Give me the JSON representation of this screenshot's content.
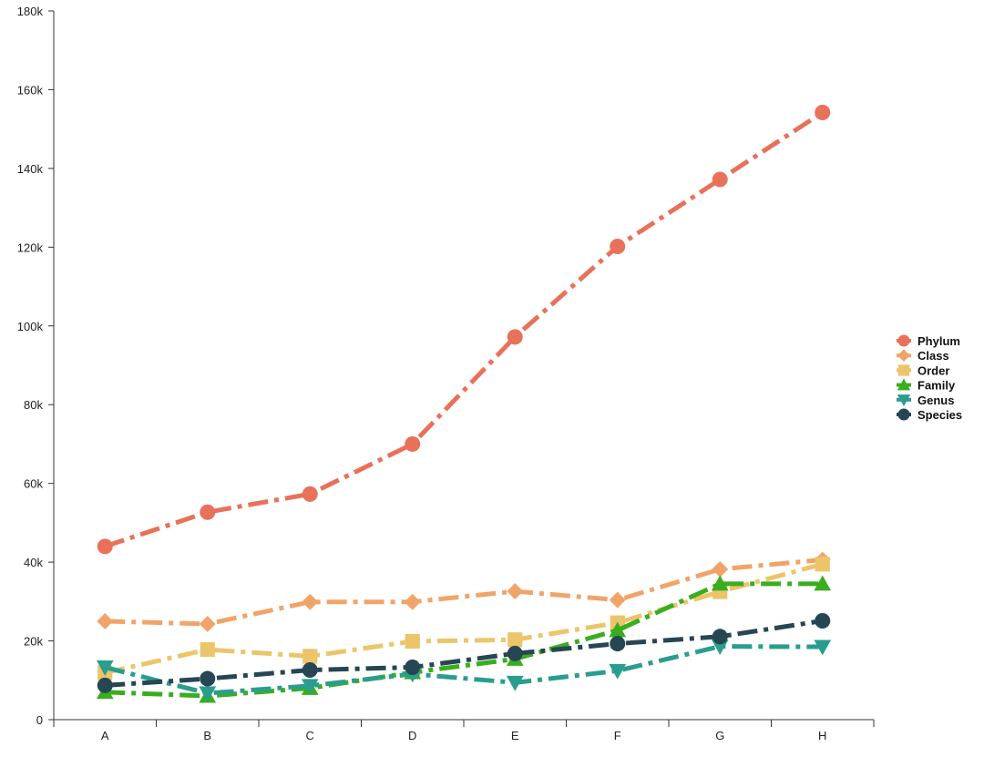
{
  "chart_data": {
    "type": "line",
    "title": "",
    "xlabel": "",
    "ylabel": "",
    "categories": [
      "A",
      "B",
      "C",
      "D",
      "E",
      "F",
      "G",
      "H"
    ],
    "ylim": [
      0,
      180000
    ],
    "yticks": [
      0,
      20000,
      40000,
      60000,
      80000,
      100000,
      120000,
      140000,
      160000,
      180000
    ],
    "ytick_labels": [
      "0",
      "20k",
      "40k",
      "60k",
      "80k",
      "100k",
      "120k",
      "140k",
      "160k",
      "180k"
    ],
    "grid": false,
    "legend_position": "right",
    "series": [
      {
        "name": "Phylum",
        "color": "#e8715a",
        "marker": "circle",
        "dash": "dashdot",
        "values": [
          44000,
          52700,
          57300,
          70000,
          97200,
          120200,
          137200,
          154200
        ]
      },
      {
        "name": "Class",
        "color": "#f1a469",
        "marker": "diamond",
        "dash": "dashdot",
        "values": [
          25000,
          24300,
          29900,
          29900,
          32600,
          30400,
          38200,
          40600
        ]
      },
      {
        "name": "Order",
        "color": "#ecc56a",
        "marker": "square",
        "dash": "dashdot",
        "values": [
          11900,
          17800,
          16100,
          19900,
          20300,
          24600,
          32500,
          39500
        ]
      },
      {
        "name": "Family",
        "color": "#3aad1f",
        "marker": "triangle-up",
        "dash": "dashdot",
        "values": [
          7000,
          6000,
          8000,
          12000,
          15400,
          22700,
          34500,
          34500
        ]
      },
      {
        "name": "Genus",
        "color": "#2a9d8f",
        "marker": "triangle-down",
        "dash": "dashdot",
        "values": [
          13300,
          6700,
          8600,
          11600,
          9400,
          12400,
          18600,
          18500
        ]
      },
      {
        "name": "Species",
        "color": "#264653",
        "marker": "circle",
        "dash": "dashdot",
        "values": [
          8700,
          10400,
          12600,
          13300,
          16800,
          19300,
          21100,
          25100
        ]
      }
    ]
  }
}
